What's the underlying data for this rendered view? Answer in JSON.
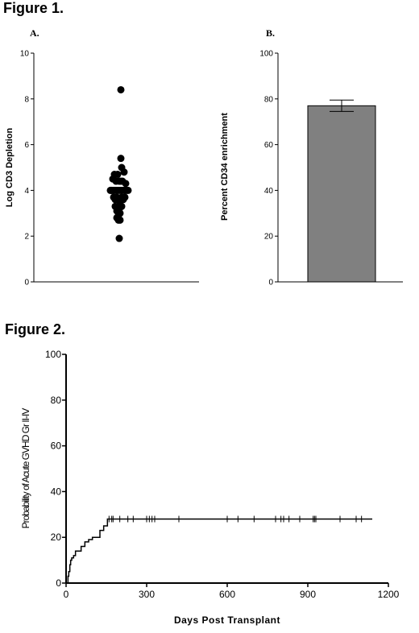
{
  "figure1_title": "Figure 1.",
  "figure2_title": "Figure 2.",
  "chart_data": [
    {
      "type": "scatter",
      "panel": "A.",
      "ylabel": "Log CD3 Depletion",
      "xlabel": "",
      "ylim": [
        0,
        10
      ],
      "yticks": [
        0,
        2,
        4,
        6,
        8,
        10
      ],
      "ytick_labels": [
        "0",
        "2",
        "4",
        "6",
        "8",
        "10"
      ],
      "x": [
        0.5,
        -0.7,
        -0.5,
        -0.3,
        -0.1,
        0.1,
        0.3,
        0.5,
        0.7,
        0.9,
        1.1,
        -0.8,
        -0.6,
        -0.4,
        -0.2,
        0.0,
        0.2,
        0.4,
        0.6,
        0.8,
        1.0,
        1.2,
        1.4,
        -0.4,
        -0.2,
        0.0,
        0.2,
        0.4,
        0.6,
        0.8,
        1.0,
        -0.2,
        0.0,
        0.2,
        0.4,
        0.6,
        0.0,
        0.2,
        0.4,
        0.3,
        0.5,
        0.6,
        0.2,
        0.3
      ],
      "y": [
        8.4,
        4.0,
        4.5,
        4.7,
        4.4,
        4.7,
        4.4,
        4.4,
        4.4,
        4.8,
        4.3,
        4.0,
        4.0,
        4.0,
        4.0,
        4.0,
        4.0,
        4.0,
        4.0,
        4.0,
        4.0,
        4.0,
        4.0,
        3.7,
        3.6,
        3.7,
        3.6,
        3.5,
        3.7,
        3.6,
        3.7,
        3.3,
        3.1,
        3.3,
        3.0,
        3.3,
        2.8,
        2.7,
        2.7,
        3.2,
        5.4,
        5.0,
        2.9,
        1.9
      ]
    },
    {
      "type": "bar",
      "panel": "B.",
      "ylabel": "Percent CD34 enrichment",
      "xlabel": "",
      "categories": [
        ""
      ],
      "values": [
        77
      ],
      "error": [
        2.5
      ],
      "ylim": [
        0,
        100
      ],
      "yticks": [
        0,
        20,
        40,
        60,
        80,
        100
      ],
      "ytick_labels": [
        "0",
        "20",
        "40",
        "60",
        "80",
        "100"
      ],
      "bar_color": "#808080"
    },
    {
      "type": "line",
      "step": true,
      "ylabel": "Probability of Acute GVHD Gr II-IV",
      "xlabel": "Days Post Transplant",
      "xlim": [
        0,
        1200
      ],
      "ylim": [
        0,
        100
      ],
      "xticks": [
        0,
        300,
        600,
        900,
        1200
      ],
      "xtick_labels": [
        "0",
        "300",
        "600",
        "900",
        "1200"
      ],
      "yticks": [
        0,
        20,
        40,
        60,
        80,
        100
      ],
      "ytick_labels": [
        "0",
        "20",
        "40",
        "60",
        "80",
        "100"
      ],
      "series": [
        {
          "x": [
            0,
            7,
            10,
            14,
            17,
            21,
            28,
            35,
            42,
            56,
            70,
            84,
            98,
            126,
            140,
            154,
            1140
          ],
          "y": [
            0,
            3,
            5,
            8,
            10,
            11,
            12,
            14,
            14,
            16,
            18,
            19,
            20,
            23,
            25,
            28,
            28
          ]
        }
      ],
      "censor_x": [
        160,
        170,
        175,
        200,
        230,
        250,
        300,
        310,
        320,
        330,
        420,
        600,
        640,
        700,
        780,
        800,
        810,
        830,
        870,
        920,
        925,
        930,
        1020,
        1080,
        1100
      ]
    }
  ]
}
